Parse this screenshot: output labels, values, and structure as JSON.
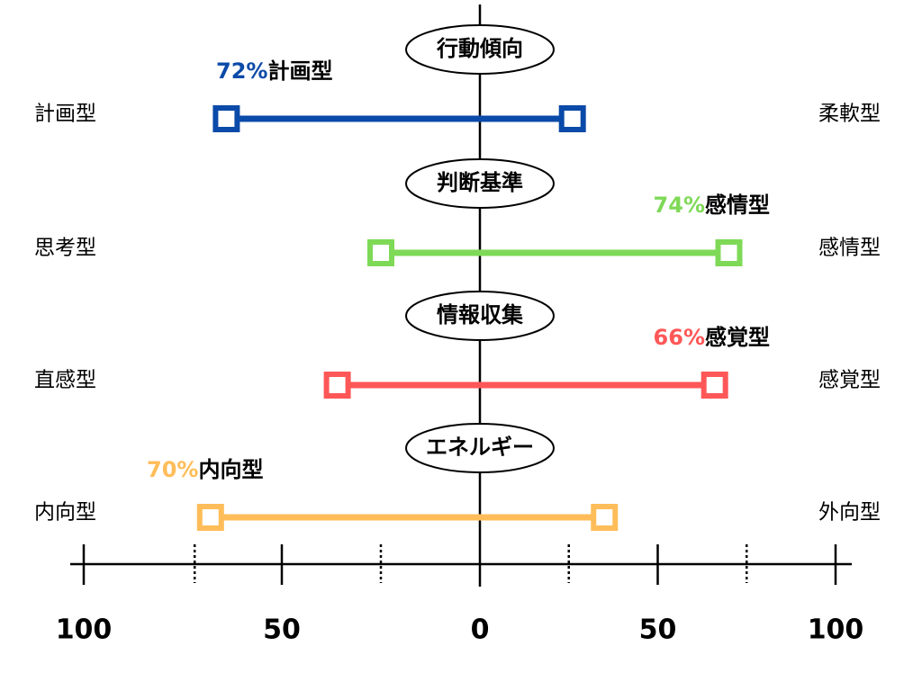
{
  "chart_data": {
    "type": "range",
    "xlim": [
      -100,
      100
    ],
    "xticks": [
      {
        "value": -100,
        "label": "100"
      },
      {
        "value": -50,
        "label": "50"
      },
      0,
      {
        "value": 50,
        "label": "50"
      },
      {
        "value": 100,
        "label": "100"
      }
    ],
    "minor_xticks": [
      -72,
      -25,
      25,
      75
    ],
    "rows": [
      {
        "name": "行動傾向",
        "left": "計画型",
        "right": "柔軟型",
        "values": [
          -64,
          26
        ],
        "color": "#0a4aa8",
        "result_value": 72,
        "result_label": "72%",
        "result_type": "計画型",
        "result_side": "left"
      },
      {
        "name": "判断基準",
        "left": "思考型",
        "right": "感情型",
        "values": [
          -25,
          70
        ],
        "color": "#7ed957",
        "result_value": 74,
        "result_label": "74%",
        "result_type": "感情型",
        "result_side": "right"
      },
      {
        "name": "情報収集",
        "left": "直感型",
        "right": "感覚型",
        "values": [
          -36,
          66
        ],
        "color": "#ff5757",
        "result_value": 66,
        "result_label": "66%",
        "result_type": "感覚型",
        "result_side": "right"
      },
      {
        "name": "エネルギー",
        "left": "内向型",
        "right": "外向型",
        "values": [
          -68,
          35
        ],
        "color": "#ffbd59",
        "result_value": 70,
        "result_label": "70%",
        "result_type": "内向型",
        "result_side": "left"
      }
    ]
  }
}
